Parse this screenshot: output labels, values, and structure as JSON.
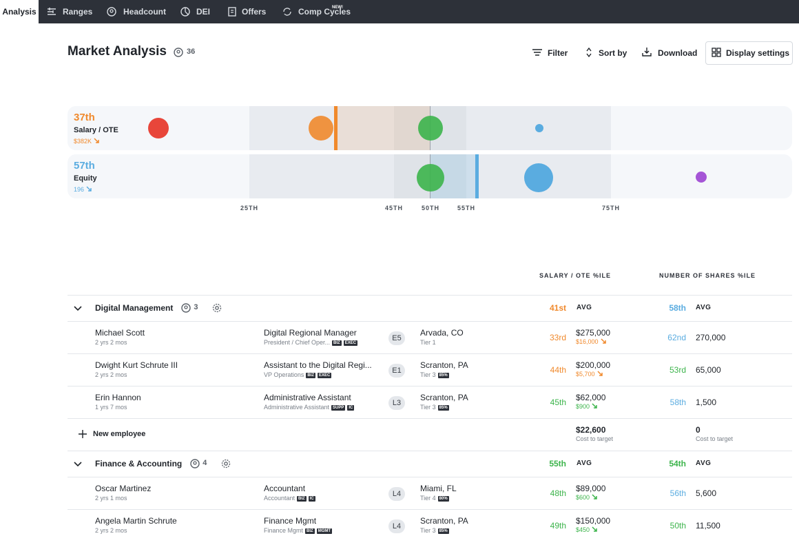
{
  "nav": {
    "items": [
      "Analysis",
      "Ranges",
      "Headcount",
      "DEI",
      "Offers",
      "Comp Cycles"
    ],
    "new_badge": "NEW!"
  },
  "header": {
    "title": "Market Analysis",
    "count": "36",
    "actions": [
      "Filter",
      "Sort by",
      "Download",
      "Display settings"
    ]
  },
  "percentile_chart": {
    "rows": [
      {
        "percentile": "37th",
        "label": "Salary / OTE",
        "value": "$382K",
        "color": "#f0892c"
      },
      {
        "percentile": "57th",
        "label": "Equity",
        "value": "196",
        "color": "#5aace0"
      }
    ],
    "axis_labels": [
      "25TH",
      "45TH",
      "50TH",
      "55TH",
      "75TH"
    ]
  },
  "table": {
    "columns": [
      "SALARY / OTE %ILE",
      "NUMBER OF SHARES %ILE"
    ],
    "groups": [
      {
        "name": "Digital Management",
        "count": "3",
        "salary_pct": "41st",
        "salary_pct_color": "#f0892c",
        "salary_avg": "AVG",
        "shares_pct": "58th",
        "shares_pct_color": "#5aace0",
        "shares_avg": "AVG",
        "employees": [
          {
            "name": "Michael Scott",
            "tenure": "2 yrs 2 mos",
            "title": "Digital Regional Manager",
            "subtitle": "President / Chief Oper...",
            "badges": [
              "BIZ",
              "EXEC"
            ],
            "level": "E5",
            "location": "Arvada, CO",
            "tier": "Tier 1",
            "tier_badge": null,
            "salary_pct": "33rd",
            "salary_pct_color": "#f0892c",
            "salary": "$275,000",
            "salary_delta": "$16,000",
            "salary_delta_color": "#f0892c",
            "shares_pct": "62nd",
            "shares_pct_color": "#5aace0",
            "shares": "270,000"
          },
          {
            "name": "Dwight Kurt Schrute III",
            "tenure": "2 yrs 2 mos",
            "title": "Assistant to the Digital Regi...",
            "subtitle": "VP Operations",
            "badges": [
              "BIZ",
              "EXEC"
            ],
            "level": "E1",
            "location": "Scranton, PA",
            "tier": "Tier 3",
            "tier_badge": "85%",
            "salary_pct": "44th",
            "salary_pct_color": "#f0892c",
            "salary": "$200,000",
            "salary_delta": "$5,700",
            "salary_delta_color": "#f0892c",
            "shares_pct": "53rd",
            "shares_pct_color": "#3cb44b",
            "shares": "65,000"
          },
          {
            "name": "Erin Hannon",
            "tenure": "1 yrs 7 mos",
            "title": "Administrative Assistant",
            "subtitle": "Administrative Assistant",
            "badges": [
              "SUPP",
              "IC"
            ],
            "level": "L3",
            "location": "Scranton, PA",
            "tier": "Tier 3",
            "tier_badge": "85%",
            "salary_pct": "45th",
            "salary_pct_color": "#3cb44b",
            "salary": "$62,000",
            "salary_delta": "$900",
            "salary_delta_color": "#3cb44b",
            "shares_pct": "58th",
            "shares_pct_color": "#5aace0",
            "shares": "1,500"
          }
        ],
        "footer": {
          "new_employee": "New employee",
          "salary_cost": "$22,600",
          "salary_cost_label": "Cost to target",
          "shares_cost": "0",
          "shares_cost_label": "Cost to target"
        }
      },
      {
        "name": "Finance & Accounting",
        "count": "4",
        "salary_pct": "55th",
        "salary_pct_color": "#3cb44b",
        "salary_avg": "AVG",
        "shares_pct": "54th",
        "shares_pct_color": "#3cb44b",
        "shares_avg": "AVG",
        "employees": [
          {
            "name": "Oscar Martinez",
            "tenure": "2 yrs 1 mos",
            "title": "Accountant",
            "subtitle": "Accountant",
            "badges": [
              "BIZ",
              "IC"
            ],
            "level": "L4",
            "location": "Miami, FL",
            "tier": "Tier 4",
            "tier_badge": "80%",
            "salary_pct": "48th",
            "salary_pct_color": "#3cb44b",
            "salary": "$89,000",
            "salary_delta": "$600",
            "salary_delta_color": "#3cb44b",
            "shares_pct": "56th",
            "shares_pct_color": "#5aace0",
            "shares": "5,600"
          },
          {
            "name": "Angela Martin Schrute",
            "tenure": "2 yrs 2 mos",
            "title": "Finance Mgmt",
            "subtitle": "Finance Mgmt",
            "badges": [
              "BIZ",
              "MGMT"
            ],
            "level": "L4",
            "location": "Scranton, PA",
            "tier": "Tier 3",
            "tier_badge": "85%",
            "salary_pct": "49th",
            "salary_pct_color": "#3cb44b",
            "salary": "$150,000",
            "salary_delta": "$450",
            "salary_delta_color": "#3cb44b",
            "shares_pct": "50th",
            "shares_pct_color": "#3cb44b",
            "shares": "11,500"
          }
        ]
      }
    ]
  }
}
